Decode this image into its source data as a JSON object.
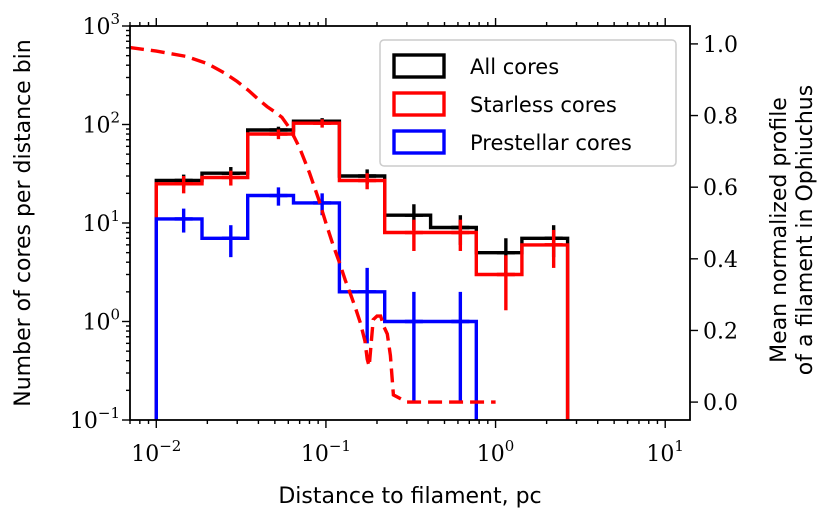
{
  "chart_data": {
    "type": "histogram-step",
    "xscale": "log",
    "xlim": [
      0.007,
      14
    ],
    "xlabel": "Distance to filament, pc",
    "x_ticks": [
      {
        "value": 0.01,
        "base": "10",
        "exp": "−2"
      },
      {
        "value": 0.1,
        "base": "10",
        "exp": "−1"
      },
      {
        "value": 1,
        "base": "10",
        "exp": "0"
      },
      {
        "value": 10,
        "base": "10",
        "exp": "1"
      }
    ],
    "y_left": {
      "scale": "log",
      "lim": [
        0.1,
        1000
      ],
      "label": "Number of cores per distance bin",
      "ticks": [
        {
          "value": 0.1,
          "base": "10",
          "exp": "−1"
        },
        {
          "value": 1,
          "base": "10",
          "exp": "0"
        },
        {
          "value": 10,
          "base": "10",
          "exp": "1"
        },
        {
          "value": 100,
          "base": "10",
          "exp": "2"
        },
        {
          "value": 1000,
          "base": "10",
          "exp": "3"
        }
      ]
    },
    "y_right": {
      "scale": "linear",
      "lim": [
        -0.05,
        1.05
      ],
      "label_line1": "Mean normalized profile",
      "label_line2": "of a filament in Ophiuchus",
      "ticks": [
        "0.0",
        "0.2",
        "0.4",
        "0.6",
        "0.8",
        "1.0"
      ]
    },
    "bin_edges": [
      0.01,
      0.0186,
      0.0346,
      0.0644,
      0.12,
      0.222,
      0.414,
      0.77,
      1.43,
      2.66
    ],
    "series": [
      {
        "name": "All cores",
        "color": "#000000",
        "counts": [
          27,
          32,
          88,
          108,
          30,
          12,
          9,
          5,
          7
        ],
        "errors": [
          {
            "x": 0.0145,
            "lo": 23,
            "hi": 31
          },
          {
            "x": 0.0275,
            "lo": 27,
            "hi": 37
          },
          {
            "x": 0.0525,
            "lo": 81,
            "hi": 95
          },
          {
            "x": 0.095,
            "lo": 100,
            "hi": 116
          },
          {
            "x": 0.175,
            "lo": 25,
            "hi": 35
          },
          {
            "x": 0.33,
            "lo": 8.5,
            "hi": 15.5
          },
          {
            "x": 0.62,
            "lo": 6,
            "hi": 12
          },
          {
            "x": 1.15,
            "lo": 3,
            "hi": 7
          },
          {
            "x": 2.2,
            "lo": 4.5,
            "hi": 9.5
          }
        ]
      },
      {
        "name": "Starless cores",
        "color": "#ff0000",
        "counts": [
          25,
          29,
          80,
          103,
          27,
          8,
          8,
          3,
          6
        ],
        "errors": [
          {
            "x": 0.0145,
            "lo": 20,
            "hi": 30
          },
          {
            "x": 0.0275,
            "lo": 24,
            "hi": 34
          },
          {
            "x": 0.0525,
            "lo": 71,
            "hi": 89
          },
          {
            "x": 0.095,
            "lo": 93,
            "hi": 113
          },
          {
            "x": 0.175,
            "lo": 22,
            "hi": 32
          },
          {
            "x": 0.33,
            "lo": 5.2,
            "hi": 10.8
          },
          {
            "x": 0.62,
            "lo": 5.2,
            "hi": 10.8
          },
          {
            "x": 1.15,
            "lo": 1.3,
            "hi": 4.7
          },
          {
            "x": 2.2,
            "lo": 3.5,
            "hi": 8.5
          }
        ]
      },
      {
        "name": "Prestellar cores",
        "color": "#0000ff",
        "counts": [
          11,
          7,
          19,
          16,
          2,
          1,
          1,
          0,
          0
        ],
        "errors": [
          {
            "x": 0.0145,
            "lo": 8,
            "hi": 14
          },
          {
            "x": 0.0275,
            "lo": 4.5,
            "hi": 9.5
          },
          {
            "x": 0.0525,
            "lo": 15,
            "hi": 23
          },
          {
            "x": 0.095,
            "lo": 12,
            "hi": 20
          },
          {
            "x": 0.175,
            "lo": 0.6,
            "hi": 3.5
          },
          {
            "x": 0.33,
            "lo": 0.15,
            "hi": 2
          },
          {
            "x": 0.62,
            "lo": 0.15,
            "hi": 2
          }
        ]
      }
    ],
    "profile": {
      "name": "Mean normalized filament profile",
      "color": "#ff0000",
      "style": "dashed",
      "x": [
        0.007,
        0.01,
        0.015,
        0.02,
        0.025,
        0.03,
        0.035,
        0.04,
        0.045,
        0.05,
        0.055,
        0.06,
        0.065,
        0.07,
        0.08,
        0.09,
        0.1,
        0.11,
        0.12,
        0.13,
        0.14,
        0.15,
        0.16,
        0.17,
        0.175,
        0.18,
        0.19,
        0.2,
        0.21,
        0.22,
        0.23,
        0.24,
        0.25,
        0.3,
        0.5,
        0.8,
        1.0
      ],
      "y": [
        0.99,
        0.98,
        0.965,
        0.945,
        0.92,
        0.895,
        0.87,
        0.845,
        0.825,
        0.81,
        0.795,
        0.77,
        0.74,
        0.71,
        0.64,
        0.57,
        0.5,
        0.44,
        0.39,
        0.34,
        0.3,
        0.26,
        0.22,
        0.17,
        0.12,
        0.1,
        0.23,
        0.24,
        0.24,
        0.21,
        0.19,
        0.13,
        0.02,
        0.0,
        0.0,
        0.0,
        0.0
      ]
    },
    "legend_position": "top-right",
    "legend": [
      "All cores",
      "Starless cores",
      "Prestellar cores"
    ]
  }
}
